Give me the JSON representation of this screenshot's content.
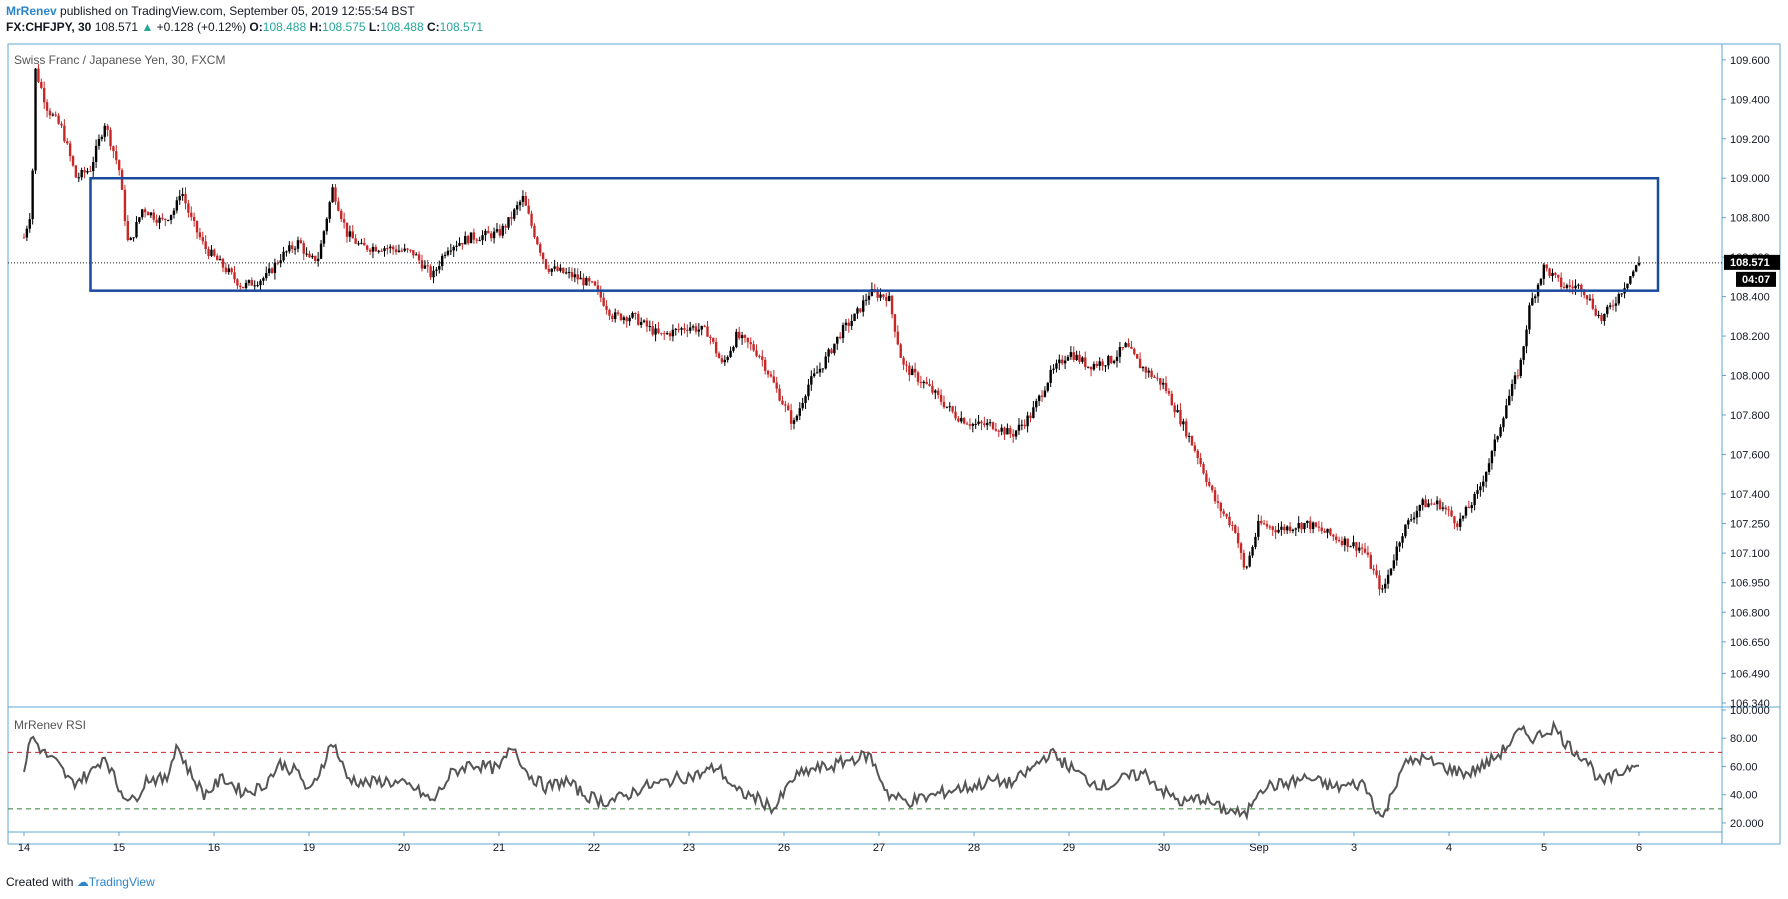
{
  "header": {
    "author": "MrRenev",
    "published_text": "published on TradingView.com, September 05, 2019 12:55:54 BST",
    "symbol": "FX:CHFJPY, 30",
    "last": "108.571",
    "change_arrow": "▲",
    "change": "+0.128 (+0.12%)",
    "o_label": "O:",
    "o_value": "108.488",
    "h_label": "H:",
    "h_value": "108.575",
    "l_label": "L:",
    "l_value": "108.488",
    "c_label": "C:",
    "c_value": "108.571"
  },
  "footer": {
    "created_with": "Created with",
    "brand": "TradingView"
  },
  "colors": {
    "up": "#000000",
    "down": "#c62828",
    "box": "#1a4a9e",
    "rsi_line": "#555555",
    "rsi_upper": "#c62828",
    "rsi_lower": "#2e7d32",
    "accent": "#2b84c9"
  },
  "chart_data": [
    {
      "type": "candlestick",
      "title": "Swiss Franc / Japanese Yen, 30, FXCM",
      "y_ticks": [
        "109.600",
        "109.400",
        "109.200",
        "109.000",
        "108.800",
        "108.600",
        "108.400",
        "108.200",
        "108.000",
        "107.800",
        "107.600",
        "107.400",
        "107.250",
        "107.100",
        "106.950",
        "106.800",
        "106.650",
        "106.490",
        "106.340"
      ],
      "ylim": [
        106.34,
        109.65
      ],
      "x_ticks": [
        "14",
        "15",
        "16",
        "19",
        "20",
        "21",
        "22",
        "23",
        "26",
        "27",
        "28",
        "29",
        "30",
        "Sep",
        "3",
        "4",
        "5",
        "6"
      ],
      "last_price_label": "108.571",
      "countdown_label": "04:07",
      "last_price": 108.571,
      "range_box": {
        "top": 109.0,
        "bottom": 108.43,
        "start_index": 0.7,
        "end_index": 17.2
      },
      "price_path": [
        [
          0.0,
          108.7
        ],
        [
          0.08,
          108.85
        ],
        [
          0.12,
          109.55
        ],
        [
          0.25,
          109.35
        ],
        [
          0.4,
          109.25
        ],
        [
          0.55,
          109.0
        ],
        [
          0.7,
          109.05
        ],
        [
          0.85,
          109.28
        ],
        [
          1.0,
          109.05
        ],
        [
          1.1,
          108.65
        ],
        [
          1.25,
          108.85
        ],
        [
          1.45,
          108.78
        ],
        [
          1.5,
          108.8
        ],
        [
          1.6,
          108.85
        ],
        [
          1.65,
          108.95
        ],
        [
          1.75,
          108.8
        ],
        [
          1.9,
          108.65
        ],
        [
          2.1,
          108.55
        ],
        [
          2.3,
          108.45
        ],
        [
          2.55,
          108.5
        ],
        [
          2.7,
          108.6
        ],
        [
          2.9,
          108.68
        ],
        [
          3.0,
          108.58
        ],
        [
          3.1,
          108.6
        ],
        [
          3.25,
          108.95
        ],
        [
          3.4,
          108.72
        ],
        [
          3.55,
          108.65
        ],
        [
          3.8,
          108.65
        ],
        [
          4.1,
          108.62
        ],
        [
          4.3,
          108.5
        ],
        [
          4.45,
          108.65
        ],
        [
          4.7,
          108.7
        ],
        [
          5.0,
          108.72
        ],
        [
          5.1,
          108.78
        ],
        [
          5.25,
          108.9
        ],
        [
          5.35,
          108.75
        ],
        [
          5.5,
          108.55
        ],
        [
          5.8,
          108.5
        ],
        [
          6.0,
          108.45
        ],
        [
          6.2,
          108.3
        ],
        [
          6.4,
          108.3
        ],
        [
          6.7,
          108.2
        ],
        [
          7.0,
          108.25
        ],
        [
          7.2,
          108.22
        ],
        [
          7.35,
          108.05
        ],
        [
          7.5,
          108.2
        ],
        [
          7.65,
          108.15
        ],
        [
          7.75,
          108.1
        ],
        [
          8.0,
          107.85
        ],
        [
          8.1,
          107.75
        ],
        [
          8.25,
          107.95
        ],
        [
          8.4,
          108.05
        ],
        [
          8.6,
          108.22
        ],
        [
          8.75,
          108.3
        ],
        [
          8.9,
          108.42
        ],
        [
          9.1,
          108.4
        ],
        [
          9.25,
          108.05
        ],
        [
          9.5,
          107.95
        ],
        [
          9.8,
          107.8
        ],
        [
          10.0,
          107.75
        ],
        [
          10.2,
          107.75
        ],
        [
          10.4,
          107.7
        ],
        [
          10.6,
          107.8
        ],
        [
          10.8,
          108.0
        ],
        [
          11.0,
          108.12
        ],
        [
          11.2,
          108.05
        ],
        [
          11.45,
          108.08
        ],
        [
          11.6,
          108.15
        ],
        [
          11.75,
          108.05
        ],
        [
          12.0,
          107.95
        ],
        [
          12.15,
          107.8
        ],
        [
          12.35,
          107.6
        ],
        [
          12.55,
          107.35
        ],
        [
          12.75,
          107.22
        ],
        [
          12.85,
          107.0
        ],
        [
          13.0,
          107.25
        ],
        [
          13.2,
          107.22
        ],
        [
          13.5,
          107.25
        ],
        [
          13.8,
          107.18
        ],
        [
          14.1,
          107.12
        ],
        [
          14.3,
          106.9
        ],
        [
          14.5,
          107.2
        ],
        [
          14.7,
          107.35
        ],
        [
          14.9,
          107.35
        ],
        [
          15.1,
          107.25
        ],
        [
          15.3,
          107.4
        ],
        [
          15.45,
          107.6
        ],
        [
          15.6,
          107.85
        ],
        [
          15.75,
          108.05
        ],
        [
          15.85,
          108.35
        ],
        [
          16.0,
          108.55
        ],
        [
          16.2,
          108.45
        ],
        [
          16.4,
          108.45
        ],
        [
          16.6,
          108.28
        ],
        [
          16.75,
          108.38
        ],
        [
          16.9,
          108.5
        ],
        [
          17.0,
          108.57
        ]
      ]
    },
    {
      "type": "line",
      "title": "MrRenev RSI",
      "y_ticks": [
        "100.000",
        "80.00",
        "60.00",
        "40.00",
        "20.000"
      ],
      "ylim": [
        15,
        100
      ],
      "overbought": 70,
      "oversold": 30,
      "rsi_path": [
        [
          0.0,
          58
        ],
        [
          0.08,
          82
        ],
        [
          0.2,
          70
        ],
        [
          0.35,
          62
        ],
        [
          0.5,
          48
        ],
        [
          0.7,
          55
        ],
        [
          0.85,
          68
        ],
        [
          1.0,
          44
        ],
        [
          1.15,
          35
        ],
        [
          1.3,
          52
        ],
        [
          1.5,
          50
        ],
        [
          1.6,
          76
        ],
        [
          1.75,
          55
        ],
        [
          1.9,
          40
        ],
        [
          2.1,
          52
        ],
        [
          2.3,
          42
        ],
        [
          2.5,
          45
        ],
        [
          2.7,
          62
        ],
        [
          2.9,
          55
        ],
        [
          3.0,
          40
        ],
        [
          3.1,
          55
        ],
        [
          3.25,
          78
        ],
        [
          3.4,
          52
        ],
        [
          3.6,
          48
        ],
        [
          3.8,
          50
        ],
        [
          4.1,
          45
        ],
        [
          4.3,
          35
        ],
        [
          4.5,
          55
        ],
        [
          4.7,
          62
        ],
        [
          5.0,
          58
        ],
        [
          5.15,
          75
        ],
        [
          5.3,
          55
        ],
        [
          5.5,
          45
        ],
        [
          5.7,
          50
        ],
        [
          5.9,
          40
        ],
        [
          6.1,
          35
        ],
        [
          6.3,
          38
        ],
        [
          6.5,
          45
        ],
        [
          6.7,
          48
        ],
        [
          6.9,
          52
        ],
        [
          7.1,
          54
        ],
        [
          7.3,
          60
        ],
        [
          7.5,
          42
        ],
        [
          7.7,
          38
        ],
        [
          7.9,
          30
        ],
        [
          8.1,
          52
        ],
        [
          8.3,
          58
        ],
        [
          8.5,
          60
        ],
        [
          8.7,
          65
        ],
        [
          8.9,
          68
        ],
        [
          9.1,
          40
        ],
        [
          9.3,
          35
        ],
        [
          9.5,
          38
        ],
        [
          9.8,
          44
        ],
        [
          10.0,
          46
        ],
        [
          10.2,
          50
        ],
        [
          10.4,
          48
        ],
        [
          10.6,
          58
        ],
        [
          10.8,
          70
        ],
        [
          11.0,
          60
        ],
        [
          11.2,
          50
        ],
        [
          11.4,
          46
        ],
        [
          11.6,
          52
        ],
        [
          11.8,
          55
        ],
        [
          12.0,
          42
        ],
        [
          12.2,
          34
        ],
        [
          12.4,
          38
        ],
        [
          12.6,
          30
        ],
        [
          12.75,
          28
        ],
        [
          12.85,
          24
        ],
        [
          13.0,
          45
        ],
        [
          13.3,
          48
        ],
        [
          13.5,
          52
        ],
        [
          13.8,
          45
        ],
        [
          14.1,
          48
        ],
        [
          14.3,
          22
        ],
        [
          14.5,
          60
        ],
        [
          14.7,
          66
        ],
        [
          15.0,
          58
        ],
        [
          15.2,
          55
        ],
        [
          15.4,
          62
        ],
        [
          15.55,
          70
        ],
        [
          15.75,
          85
        ],
        [
          15.9,
          80
        ],
        [
          16.1,
          88
        ],
        [
          16.25,
          75
        ],
        [
          16.45,
          65
        ],
        [
          16.6,
          48
        ],
        [
          16.8,
          55
        ],
        [
          17.0,
          65
        ]
      ]
    }
  ]
}
